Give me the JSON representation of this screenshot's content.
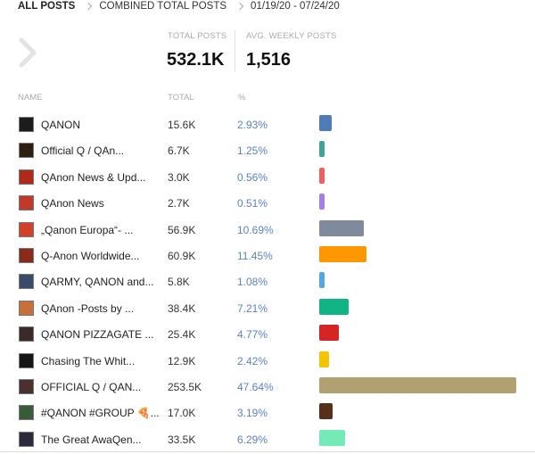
{
  "breadcrumb": {
    "items": [
      "ALL POSTS",
      "COMBINED TOTAL POSTS"
    ],
    "date_range": "01/19/20 - 07/24/20"
  },
  "summary": {
    "total_posts_label": "TOTAL POSTS",
    "total_posts_value": "532.1K",
    "avg_weekly_label": "AVG. WEEKLY POSTS",
    "avg_weekly_value": "1,516"
  },
  "table": {
    "columns": [
      "NAME",
      "TOTAL",
      "%"
    ],
    "rows": [
      {
        "name": "QANON",
        "total": "15.6K",
        "pct": "2.93%",
        "share": 2.93,
        "color": "#4f7cb6",
        "thumb": "#1c1c1c"
      },
      {
        "name": "Official Q / QAn...",
        "total": "6.7K",
        "pct": "1.25%",
        "share": 1.25,
        "color": "#45a29a",
        "thumb": "#2d2010"
      },
      {
        "name": "QAnon News & Upd...",
        "total": "3.0K",
        "pct": "0.56%",
        "share": 0.56,
        "color": "#e86262",
        "thumb": "#b02a1a"
      },
      {
        "name": "QAnon News",
        "total": "2.7K",
        "pct": "0.51%",
        "share": 0.51,
        "color": "#a57ee0",
        "thumb": "#c0392b"
      },
      {
        "name": "„Qanon Europa“- ...",
        "total": "56.9K",
        "pct": "10.69%",
        "share": 10.69,
        "color": "#7f8a9c",
        "thumb": "#d0402a"
      },
      {
        "name": "Q-Anon Worldwide...",
        "total": "60.9K",
        "pct": "11.45%",
        "share": 11.45,
        "color": "#ff9700",
        "thumb": "#8a2a1a"
      },
      {
        "name": "QARMY, QANON and...",
        "total": "5.8K",
        "pct": "1.08%",
        "share": 1.08,
        "color": "#55a7e0",
        "thumb": "#3a4a6a"
      },
      {
        "name": "QAnon -Posts by ...",
        "total": "38.4K",
        "pct": "7.21%",
        "share": 7.21,
        "color": "#12b486",
        "thumb": "#c8703a"
      },
      {
        "name": "QANON PIZZAGATE ...",
        "total": "25.4K",
        "pct": "4.77%",
        "share": 4.77,
        "color": "#d42424",
        "thumb": "#3a2a2a"
      },
      {
        "name": "Chasing The Whit...",
        "total": "12.9K",
        "pct": "2.42%",
        "share": 2.42,
        "color": "#f5c400",
        "thumb": "#151515"
      },
      {
        "name": "OFFICIAL Q / QAN...",
        "total": "253.5K",
        "pct": "47.64%",
        "share": 47.64,
        "color": "#b1a170",
        "thumb": "#4a3030"
      },
      {
        "name": "#QANON #GROUP 🍕...",
        "total": "17.0K",
        "pct": "3.19%",
        "share": 3.19,
        "color": "#55301a",
        "thumb": "#3a5a3a"
      },
      {
        "name": "The Great AwaQen...",
        "total": "33.5K",
        "pct": "6.29%",
        "share": 6.29,
        "color": "#74eab6",
        "thumb": "#2a2a3a"
      }
    ]
  },
  "icons": {
    "breadcrumb_separator": "chevron-right-icon",
    "nav_back": "chevron-right-icon"
  }
}
